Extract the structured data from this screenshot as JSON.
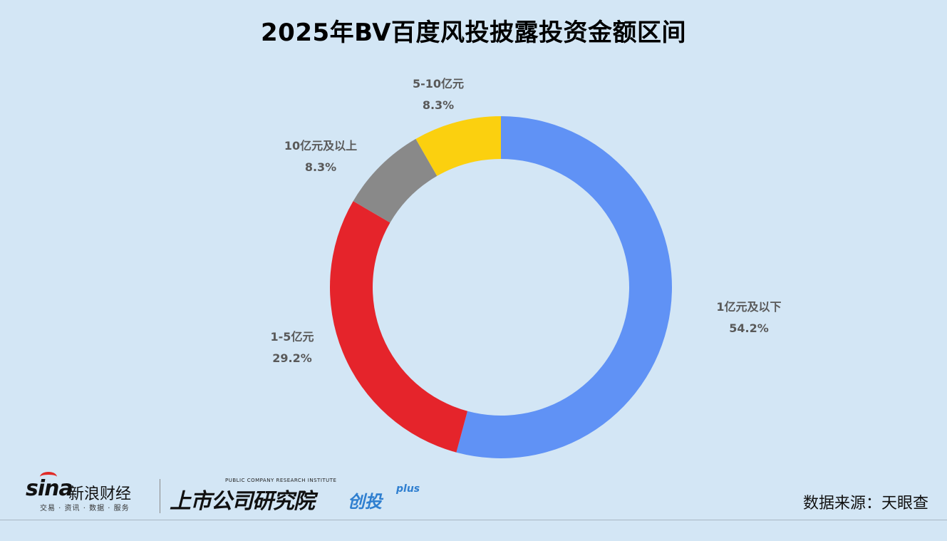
{
  "chart_data": {
    "type": "pie",
    "variant": "donut",
    "title": "2025年BV百度风投披露投资金额区间",
    "slices": [
      {
        "label": "1亿元及以下",
        "value": 54.2,
        "display": "54.2%",
        "color": "#6092f5"
      },
      {
        "label": "1-5亿元",
        "value": 29.2,
        "display": "29.2%",
        "color": "#e5242b"
      },
      {
        "label": "10亿元及以上",
        "value": 8.3,
        "display": "8.3%",
        "color": "#898989"
      },
      {
        "label": "5-10亿元",
        "value": 8.3,
        "display": "8.3%",
        "color": "#fbd00f"
      }
    ],
    "legend": "none"
  },
  "footer": {
    "sina_logo_text": "sina",
    "sina_cn": "新浪财经",
    "sina_sub": "交易 · 资讯 · 数据 · 服务",
    "institute_tag": "PUBLIC COMPANY RESEARCH INSTITUTE",
    "institute_name": "上市公司研究院",
    "brand": "创投",
    "brand_sup": "plus",
    "source": "数据来源：天眼查"
  }
}
